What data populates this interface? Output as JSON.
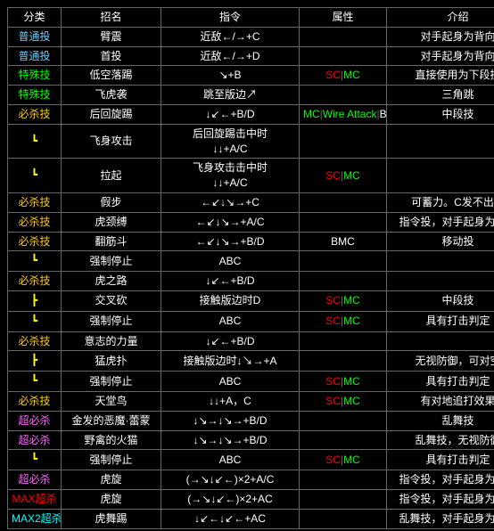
{
  "cols": {
    "widths": {
      "cat": 60,
      "name": 112,
      "cmd": 155,
      "attr": 98,
      "desc": 160
    }
  },
  "headers": {
    "cat": "分类",
    "name": "招名",
    "cmd": "指令",
    "attr": "属性",
    "desc": "介绍"
  },
  "catColors": {
    "普通投": "#6cf",
    "特殊技": "#0f0",
    "必杀技": "#fc0",
    "超必杀": "#f6f",
    "MAX超杀": "#f00",
    "MAX2超杀": "#0ff",
    "L": "#ff0",
    "T": "#ff0"
  },
  "rows": [
    {
      "cat": "普通投",
      "name": "臂震",
      "cmd": "近敌←/→+C",
      "attr": [],
      "desc": "对手起身为背向"
    },
    {
      "cat": "普通投",
      "name": "首投",
      "cmd": "近敌←/→+D",
      "attr": [],
      "desc": "对手起身为背向"
    },
    {
      "cat": "特殊技",
      "name": "低空落踢",
      "cmd": "↘+B",
      "attr": [
        "SC",
        "MC"
      ],
      "desc": "直接使用为下段技"
    },
    {
      "cat": "特殊技",
      "name": "飞虎袭",
      "cmd": "跳至版边↗",
      "attr": [],
      "desc": "三角跳"
    },
    {
      "cat": "必杀技",
      "name": "后回旋踢",
      "cmd": "↓↙←+B/D",
      "attr": [
        "MC",
        "Wire Attack",
        "BMC"
      ],
      "desc": "中段技"
    },
    {
      "cat": "L",
      "name": "飞身攻击",
      "cmd": "后回旋踢击中时\n↓↓+A/C",
      "attr": [],
      "desc": ""
    },
    {
      "cat": "L",
      "name": "拉起",
      "cmd": "飞身攻击击中时\n↓↓+A/C",
      "attr": [
        "SC",
        "MC"
      ],
      "desc": ""
    },
    {
      "cat": "必杀技",
      "name": "假步",
      "cmd": "←↙↓↘→+C",
      "attr": [],
      "desc": "可蓄力。C发不出招"
    },
    {
      "cat": "必杀技",
      "name": "虎颈缚",
      "cmd": "←↙↓↘→+A/C",
      "attr": [],
      "desc": "指令投，对手起身为背向"
    },
    {
      "cat": "必杀技",
      "name": "翻筋斗",
      "cmd": "←↙↓↘→+B/D",
      "attr": [
        "BMC"
      ],
      "desc": "移动投"
    },
    {
      "cat": "L",
      "name": "强制停止",
      "cmd": "ABC",
      "attr": [],
      "desc": ""
    },
    {
      "cat": "必杀技",
      "name": "虎之路",
      "cmd": "↓↙←+B/D",
      "attr": [],
      "desc": ""
    },
    {
      "cat": "T",
      "name": "交叉砍",
      "cmd": "接触版边时D",
      "attr": [
        "SC",
        "MC"
      ],
      "desc": "中段技"
    },
    {
      "cat": "L",
      "name": "强制停止",
      "cmd": "ABC",
      "attr": [
        "SC",
        "MC"
      ],
      "desc": "具有打击判定"
    },
    {
      "cat": "必杀技",
      "name": "意志的力量",
      "cmd": "↓↙←+B/D",
      "attr": [],
      "desc": ""
    },
    {
      "cat": "T",
      "name": "猛虎扑",
      "cmd": "接触版边时↓↘→+A",
      "attr": [],
      "desc": "无视防御，可对空"
    },
    {
      "cat": "L",
      "name": "强制停止",
      "cmd": "ABC",
      "attr": [
        "SC",
        "MC"
      ],
      "desc": "具有打击判定"
    },
    {
      "cat": "必杀技",
      "name": "天堂鸟",
      "cmd": "↓↓+A，C",
      "attr": [
        "SC",
        "MC"
      ],
      "desc": "有对地追打效果"
    },
    {
      "cat": "超必杀",
      "name": "金发的恶魔·蕾蒙",
      "cmd": "↓↘→↓↘→+B/D",
      "attr": [],
      "desc": "乱舞技"
    },
    {
      "cat": "超必杀",
      "name": "野禽的火猫",
      "cmd": "↓↘→↓↘→+B/D",
      "attr": [],
      "desc": "乱舞技，无视防御"
    },
    {
      "cat": "L",
      "name": "强制停止",
      "cmd": "ABC",
      "attr": [
        "SC",
        "MC"
      ],
      "desc": "具有打击判定"
    },
    {
      "cat": "超必杀",
      "name": "虎旋",
      "cmd": "(→↘↓↙←)×2+A/C",
      "attr": [],
      "desc": "指令投，对手起身为背向"
    },
    {
      "cat": "MAX超杀",
      "name": "虎旋",
      "cmd": "(→↘↓↙←)×2+AC",
      "attr": [],
      "desc": "指令投，对手起身为背向"
    },
    {
      "cat": "MAX2超杀",
      "name": "虎舞踢",
      "cmd": "↓↙←↓↙←+AC",
      "attr": [],
      "desc": "乱舞技，对手起身为背向"
    }
  ]
}
